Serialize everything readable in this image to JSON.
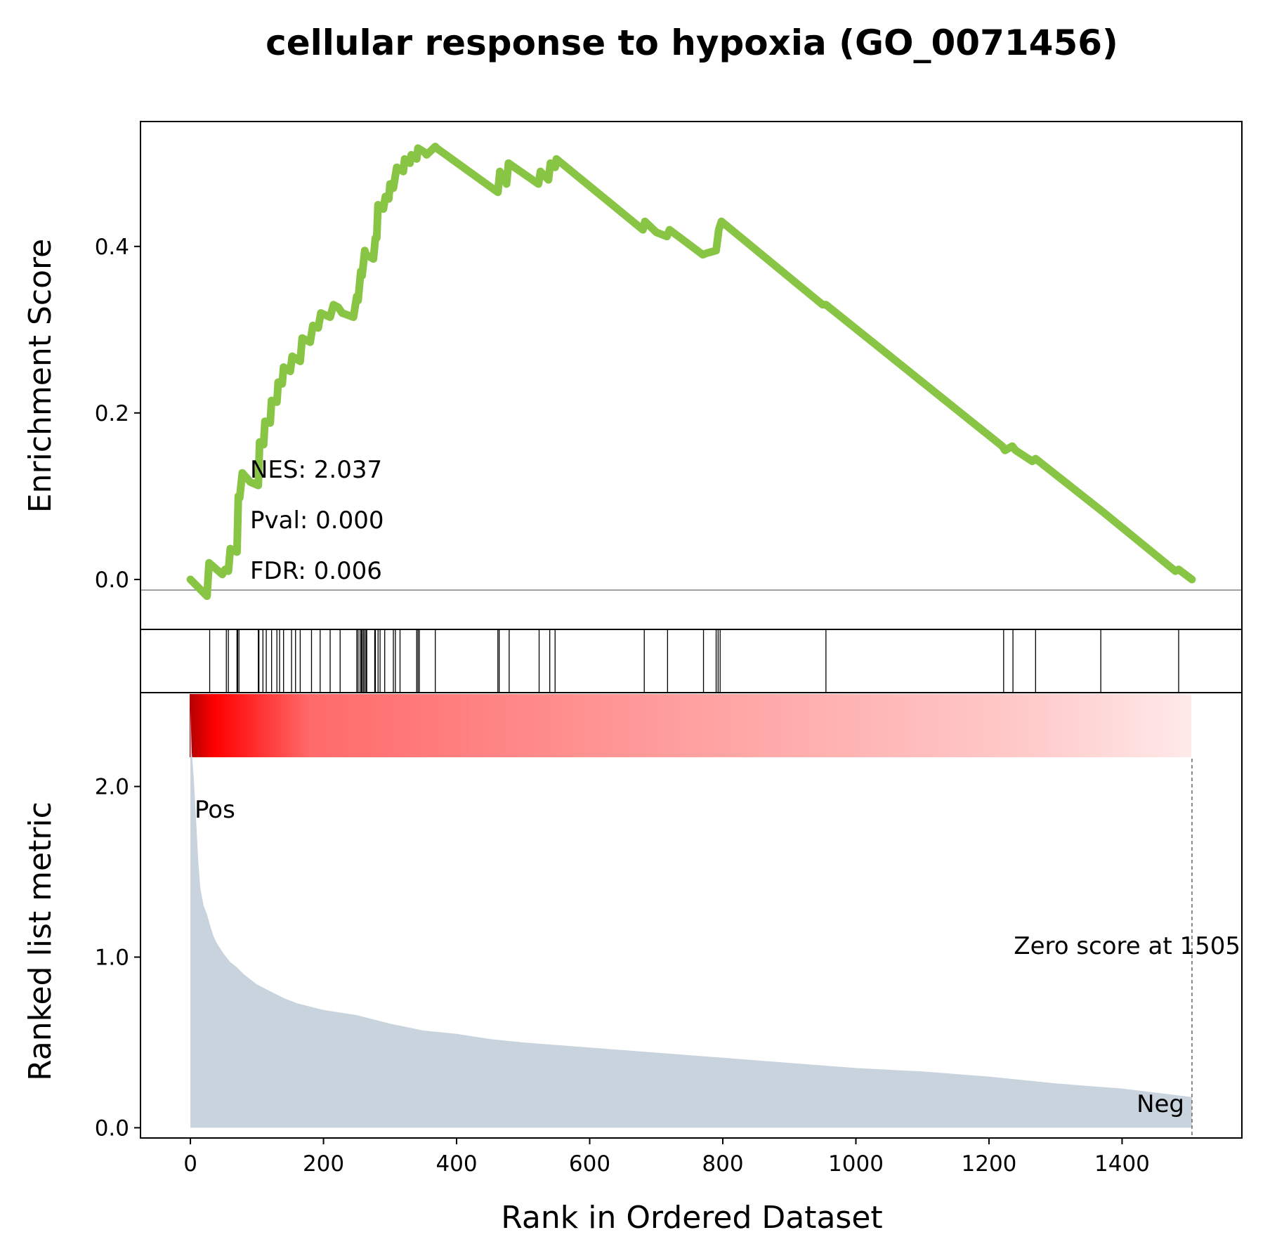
{
  "chart_data": {
    "type": "line",
    "title": "cellular response to hypoxia (GO_0071456)",
    "xlabel": "Rank in Ordered Dataset",
    "es_panel": {
      "ylabel": "Enrichment Score",
      "ylim": [
        -0.06,
        0.55
      ],
      "yticks": [
        0.0,
        0.2,
        0.4
      ],
      "ytick_labels": [
        "0.0",
        "0.2",
        "0.4"
      ],
      "line_color": "#88c544",
      "series": [
        {
          "x": [
            0,
            25,
            28,
            48,
            52,
            57,
            60,
            70,
            72,
            74,
            78,
            90,
            102,
            104,
            110,
            112,
            120,
            122,
            130,
            132,
            138,
            140,
            150,
            153,
            165,
            168,
            180,
            184,
            192,
            196,
            210,
            215,
            222,
            228,
            245,
            250,
            252,
            256,
            258,
            262,
            264,
            275,
            278,
            280,
            282,
            290,
            293,
            298,
            300,
            305,
            310,
            320,
            322,
            330,
            332,
            340,
            342,
            352,
            355,
            368,
            370,
            462,
            465,
            475,
            478,
            523,
            526,
            538,
            541,
            548,
            550,
            680,
            683,
            700,
            716,
            720,
            770,
            776,
            790,
            794,
            798,
            950,
            955,
            1220,
            1224,
            1235,
            1240,
            1265,
            1270,
            1365,
            1370,
            1480,
            1485,
            1505
          ],
          "y": [
            0.0,
            -0.02,
            0.02,
            0.006,
            0.012,
            0.01,
            0.037,
            0.033,
            0.1,
            0.098,
            0.128,
            0.117,
            0.113,
            0.165,
            0.162,
            0.19,
            0.188,
            0.215,
            0.213,
            0.237,
            0.235,
            0.255,
            0.25,
            0.268,
            0.262,
            0.29,
            0.285,
            0.305,
            0.302,
            0.32,
            0.315,
            0.33,
            0.327,
            0.32,
            0.315,
            0.34,
            0.335,
            0.37,
            0.365,
            0.395,
            0.39,
            0.385,
            0.41,
            0.41,
            0.45,
            0.445,
            0.46,
            0.457,
            0.475,
            0.47,
            0.495,
            0.49,
            0.505,
            0.5,
            0.51,
            0.505,
            0.518,
            0.513,
            0.51,
            0.52,
            0.518,
            0.465,
            0.49,
            0.475,
            0.5,
            0.475,
            0.49,
            0.48,
            0.5,
            0.495,
            0.505,
            0.42,
            0.43,
            0.417,
            0.412,
            0.42,
            0.39,
            0.392,
            0.395,
            0.42,
            0.43,
            0.33,
            0.33,
            0.16,
            0.155,
            0.16,
            0.155,
            0.142,
            0.145,
            0.085,
            0.082,
            0.01,
            0.012,
            0.0
          ]
        }
      ],
      "annotations": [
        "NES: 2.037",
        "Pval: 0.000",
        "FDR: 0.006"
      ]
    },
    "hits_panel": {
      "hit_ranks": [
        29,
        54,
        57,
        70,
        71,
        73,
        102,
        103,
        109,
        114,
        122,
        130,
        134,
        140,
        152,
        158,
        165,
        182,
        195,
        210,
        225,
        250,
        252,
        255,
        257,
        258,
        260,
        262,
        264,
        265,
        277,
        278,
        282,
        285,
        292,
        305,
        308,
        315,
        340,
        342,
        344,
        368,
        462,
        464,
        479,
        524,
        540,
        548,
        682,
        717,
        771,
        790,
        793,
        796,
        955,
        1222,
        1236,
        1270,
        1368,
        1485
      ]
    },
    "ranked_panel": {
      "ylabel": "Ranked list metric",
      "ylim": [
        -0.06,
        2.55
      ],
      "yticks": [
        0.0,
        1.0,
        2.0
      ],
      "ytick_labels": [
        "0.0",
        "1.0",
        "2.0"
      ],
      "fill_color": "#c8d3dd",
      "heatmap_color": "#ff0000",
      "x": [
        0,
        2,
        5,
        8,
        10,
        12,
        15,
        20,
        25,
        30,
        35,
        40,
        50,
        60,
        70,
        80,
        90,
        100,
        120,
        140,
        160,
        180,
        200,
        250,
        300,
        350,
        400,
        450,
        500,
        600,
        700,
        800,
        900,
        1000,
        1100,
        1200,
        1300,
        1400,
        1505
      ],
      "values": [
        2.45,
        2.2,
        2.05,
        1.85,
        1.7,
        1.55,
        1.4,
        1.3,
        1.25,
        1.18,
        1.12,
        1.08,
        1.02,
        0.97,
        0.94,
        0.9,
        0.87,
        0.84,
        0.8,
        0.76,
        0.73,
        0.71,
        0.69,
        0.66,
        0.61,
        0.57,
        0.55,
        0.52,
        0.5,
        0.47,
        0.44,
        0.41,
        0.38,
        0.35,
        0.33,
        0.3,
        0.26,
        0.23,
        0.18
      ],
      "pos_label": "Pos",
      "neg_label": "Neg",
      "pos_color": "#ff0000",
      "neg_color": "#0000ff",
      "zero_score_text": "Zero score at 1505",
      "zero_score_rank": 1505
    },
    "x_axis": {
      "xlim": [
        -75,
        1580
      ],
      "xticks": [
        0,
        200,
        400,
        600,
        800,
        1000,
        1200,
        1400
      ],
      "xtick_labels": [
        "0",
        "200",
        "400",
        "600",
        "800",
        "1000",
        "1200",
        "1400"
      ]
    }
  }
}
